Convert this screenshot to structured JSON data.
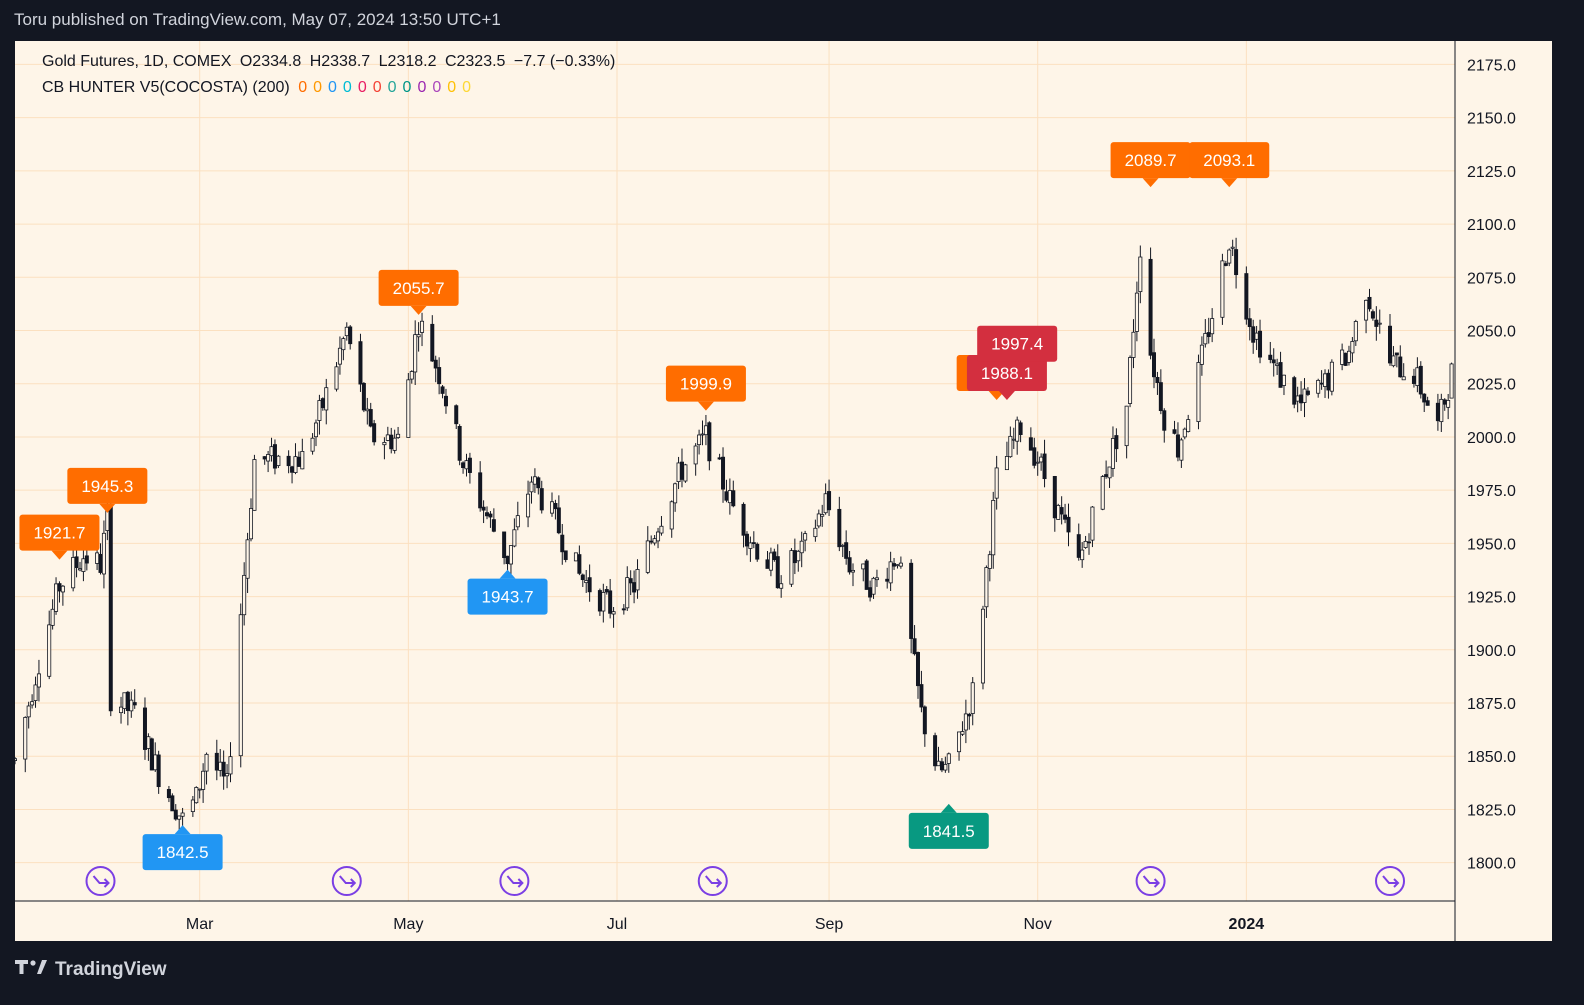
{
  "header": {
    "published": "Toru published on TradingView.com, May 07, 2024 13:50 UTC+1"
  },
  "legend": {
    "symbol": "Gold Futures, 1D, COMEX",
    "ohlc": [
      "O2334.8",
      "H2338.7",
      "L2318.2",
      "C2323.5",
      "−7.7 (−0.33%)"
    ],
    "indicator": "CB HUNTER V5(COCOSTA) (200)",
    "indicator_values": [
      {
        "text": "0",
        "color": "#ff6d00"
      },
      {
        "text": "0",
        "color": "#ff9800"
      },
      {
        "text": "0",
        "color": "#2196f3"
      },
      {
        "text": "0",
        "color": "#00bcd4"
      },
      {
        "text": "0",
        "color": "#e91e63"
      },
      {
        "text": "0",
        "color": "#f44336"
      },
      {
        "text": "0",
        "color": "#26a69a"
      },
      {
        "text": "0",
        "color": "#009688"
      },
      {
        "text": "0",
        "color": "#9c27b0"
      },
      {
        "text": "0",
        "color": "#ab47bc"
      },
      {
        "text": "0",
        "color": "#ffc107"
      },
      {
        "text": "0",
        "color": "#fdd835"
      }
    ]
  },
  "footer": {
    "brand": "TradingView"
  },
  "colors": {
    "background": "#fef5e8",
    "grid": "#fbe0c0",
    "candle": "#131722",
    "orange": "#ff6d00",
    "blue": "#2196f3",
    "teal": "#089981",
    "red": "#d32f3f",
    "purple": "#7b3fe4"
  },
  "chart_data": {
    "type": "candlestick",
    "y_ticks": [
      2175.0,
      2150.0,
      2125.0,
      2100.0,
      2075.0,
      2050.0,
      2025.0,
      2000.0,
      1975.0,
      1950.0,
      1925.0,
      1900.0,
      1875.0,
      1850.0,
      1825.0,
      1800.0
    ],
    "ylim": [
      1782,
      2186
    ],
    "x_ticks": [
      {
        "label": "Mar",
        "date": "2023-03-01"
      },
      {
        "label": "May",
        "date": "2023-05-01"
      },
      {
        "label": "Jul",
        "date": "2023-07-01"
      },
      {
        "label": "Sep",
        "date": "2023-09-01"
      },
      {
        "label": "Nov",
        "date": "2023-11-01"
      },
      {
        "label": "2024",
        "date": "2024-01-01",
        "bold": true
      }
    ],
    "xlim": [
      "2023-01-06",
      "2024-03-02"
    ],
    "price_path": [
      [
        "2023-01-06",
        1848
      ],
      [
        "2023-01-13",
        1895
      ],
      [
        "2023-01-19",
        1930
      ],
      [
        "2023-01-26",
        1944
      ],
      [
        "2023-01-31",
        1940
      ],
      [
        "2023-02-02",
        1962
      ],
      [
        "2023-02-03",
        1878
      ],
      [
        "2023-02-10",
        1870
      ],
      [
        "2023-02-17",
        1842
      ],
      [
        "2023-02-24",
        1820
      ],
      [
        "2023-02-28",
        1830
      ],
      [
        "2023-03-03",
        1852
      ],
      [
        "2023-03-09",
        1835
      ],
      [
        "2023-03-13",
        1918
      ],
      [
        "2023-03-17",
        1989
      ],
      [
        "2023-03-24",
        1990
      ],
      [
        "2023-03-31",
        1990
      ],
      [
        "2023-04-06",
        2015
      ],
      [
        "2023-04-13",
        2050
      ],
      [
        "2023-04-20",
        2000
      ],
      [
        "2023-04-28",
        1999
      ],
      [
        "2023-05-04",
        2055
      ],
      [
        "2023-05-10",
        2030
      ],
      [
        "2023-05-17",
        1988
      ],
      [
        "2023-05-24",
        1963
      ],
      [
        "2023-05-30",
        1943
      ],
      [
        "2023-06-06",
        1980
      ],
      [
        "2023-06-13",
        1960
      ],
      [
        "2023-06-20",
        1935
      ],
      [
        "2023-06-29",
        1920
      ],
      [
        "2023-07-06",
        1930
      ],
      [
        "2023-07-13",
        1960
      ],
      [
        "2023-07-20",
        1985
      ],
      [
        "2023-07-27",
        2000
      ],
      [
        "2023-08-03",
        1970
      ],
      [
        "2023-08-10",
        1950
      ],
      [
        "2023-08-17",
        1935
      ],
      [
        "2023-08-24",
        1945
      ],
      [
        "2023-08-31",
        1970
      ],
      [
        "2023-09-07",
        1940
      ],
      [
        "2023-09-14",
        1930
      ],
      [
        "2023-09-21",
        1945
      ],
      [
        "2023-09-28",
        1870
      ],
      [
        "2023-10-03",
        1842
      ],
      [
        "2023-10-06",
        1845
      ],
      [
        "2023-10-13",
        1880
      ],
      [
        "2023-10-20",
        1980
      ],
      [
        "2023-10-27",
        2005
      ],
      [
        "2023-11-01",
        1990
      ],
      [
        "2023-11-08",
        1960
      ],
      [
        "2023-11-13",
        1940
      ],
      [
        "2023-11-20",
        1980
      ],
      [
        "2023-11-27",
        2015
      ],
      [
        "2023-12-01",
        2090
      ],
      [
        "2023-12-04",
        2040
      ],
      [
        "2023-12-08",
        2010
      ],
      [
        "2023-12-12",
        1995
      ],
      [
        "2023-12-18",
        2030
      ],
      [
        "2023-12-27",
        2093
      ],
      [
        "2024-01-03",
        2050
      ],
      [
        "2024-01-10",
        2030
      ],
      [
        "2024-01-17",
        2015
      ],
      [
        "2024-01-24",
        2025
      ],
      [
        "2024-01-31",
        2040
      ],
      [
        "2024-02-05",
        2070
      ],
      [
        "2024-02-12",
        2035
      ],
      [
        "2024-02-19",
        2030
      ],
      [
        "2024-02-26",
        2005
      ],
      [
        "2024-03-01",
        2030
      ]
    ],
    "labels": [
      {
        "text": "1921.7",
        "date": "2023-01-19",
        "price": 1940,
        "color": "orange",
        "dir": "down"
      },
      {
        "text": "1945.3",
        "date": "2023-02-02",
        "price": 1962,
        "color": "orange",
        "dir": "down"
      },
      {
        "text": "1842.5",
        "date": "2023-02-24",
        "price": 1820,
        "color": "blue",
        "dir": "up"
      },
      {
        "text": "2055.7",
        "date": "2023-05-04",
        "price": 2055,
        "color": "orange",
        "dir": "down"
      },
      {
        "text": "1943.7",
        "date": "2023-05-30",
        "price": 1940,
        "color": "blue",
        "dir": "up"
      },
      {
        "text": "1999.9",
        "date": "2023-07-27",
        "price": 2010,
        "color": "orange",
        "dir": "down"
      },
      {
        "text": "1841.5",
        "date": "2023-10-06",
        "price": 1830,
        "color": "teal",
        "dir": "up"
      },
      {
        "text": "",
        "date": "2023-10-20",
        "price": 2015,
        "color": "orange",
        "dir": "down"
      },
      {
        "text": "1988.1",
        "date": "2023-10-23",
        "price": 2015,
        "color": "red",
        "dir": "down"
      },
      {
        "text": "1997.4",
        "date": "2023-10-26",
        "price": 2025,
        "color": "red",
        "dir": "none"
      },
      {
        "text": "2089.7",
        "date": "2023-12-04",
        "price": 2115,
        "color": "orange",
        "dir": "down"
      },
      {
        "text": "2093.1",
        "date": "2023-12-27",
        "price": 2115,
        "color": "orange",
        "dir": "down"
      }
    ],
    "event_markers": [
      "2023-01-31",
      "2023-04-13",
      "2023-06-01",
      "2023-07-29",
      "2023-12-04",
      "2024-02-12"
    ]
  }
}
